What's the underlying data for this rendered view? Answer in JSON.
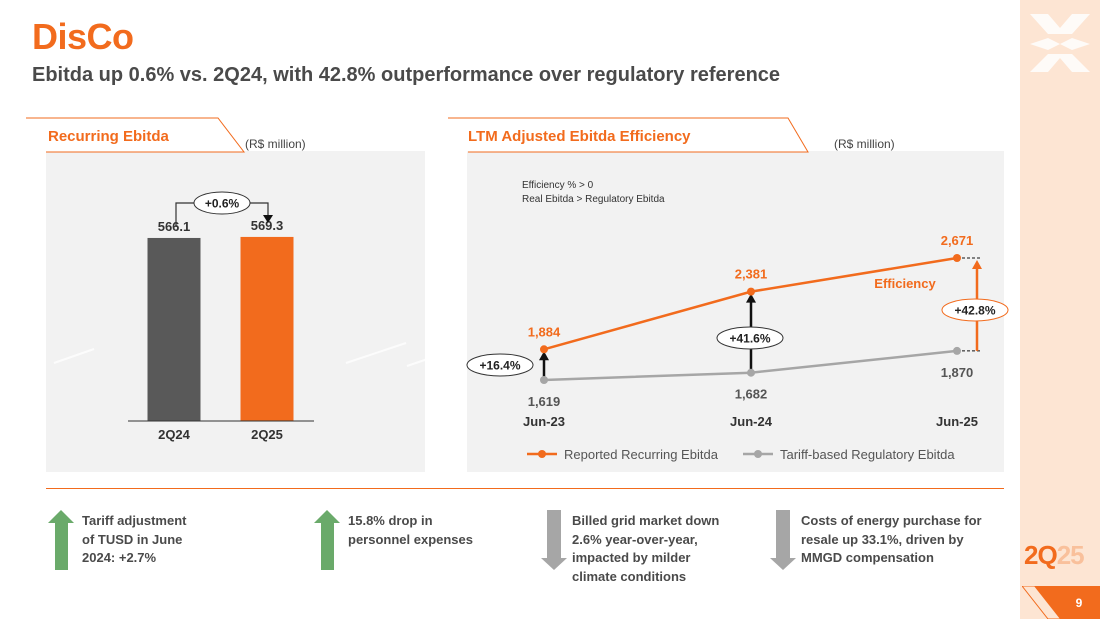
{
  "page": {
    "title": "DisCo",
    "subtitle": "Ebitda up 0.6% vs. 2Q24, with 42.8% outperformance over regulatory reference",
    "quarter_main": "2Q",
    "quarter_dim": "25",
    "page_number": "9"
  },
  "colors": {
    "accent": "#f26b1d",
    "dark_bar": "#595959",
    "gray_line": "#a6a6a6",
    "up_arrow": "#6aaa6a",
    "down_arrow": "#a6a6a6",
    "panel": "#f2f2f2"
  },
  "left_panel": {
    "title": "Recurring Ebitda",
    "unit": "(R$ million)"
  },
  "right_panel": {
    "title": "LTM Adjusted Ebitda Efficiency",
    "unit": "(R$ million)",
    "note_line1": "Efficiency % > 0",
    "note_line2": "Real Ebitda > Regulatory Ebitda"
  },
  "chart_data": [
    {
      "type": "bar",
      "title": "Recurring Ebitda",
      "ylabel": "R$ million",
      "categories": [
        "2Q24",
        "2Q25"
      ],
      "values": [
        566.1,
        569.3
      ],
      "value_labels": [
        "566.1",
        "569.3"
      ],
      "bar_colors": [
        "#595959",
        "#f26b1d"
      ],
      "ylim": [
        0,
        600
      ],
      "annotation": "+0.6%"
    },
    {
      "type": "line",
      "title": "LTM Adjusted Ebitda Efficiency",
      "ylabel": "R$ million",
      "categories": [
        "Jun-23",
        "Jun-24",
        "Jun-25"
      ],
      "ylim": [
        1300,
        2800
      ],
      "series": [
        {
          "name": "Reported Recurring Ebitda",
          "color": "#f26b1d",
          "values": [
            1884,
            2381,
            2671
          ],
          "labels": [
            "1,884",
            "2,381",
            "2,671"
          ]
        },
        {
          "name": "Tariff-based Regulatory Ebitda",
          "color": "#a6a6a6",
          "values": [
            1619,
            1682,
            1870
          ],
          "labels": [
            "1,619",
            "1,682",
            "1,870"
          ]
        }
      ],
      "efficiency_labels": [
        "+16.4%",
        "+41.6%",
        "+42.8%"
      ],
      "annotation": "Efficiency"
    }
  ],
  "drivers": [
    {
      "direction": "up",
      "text_lines": [
        "Tariff adjustment",
        "of TUSD in June",
        "2024: +2.7%"
      ]
    },
    {
      "direction": "up",
      "text_lines": [
        "15.8% drop in",
        "personnel expenses"
      ]
    },
    {
      "direction": "down",
      "text_lines": [
        "Billed grid market down",
        "2.6% year-over-year,",
        "impacted by milder",
        "climate conditions"
      ]
    },
    {
      "direction": "down",
      "text_lines": [
        "Costs of energy purchase for",
        "resale up 33.1%, driven by",
        "MMGD compensation"
      ]
    }
  ]
}
